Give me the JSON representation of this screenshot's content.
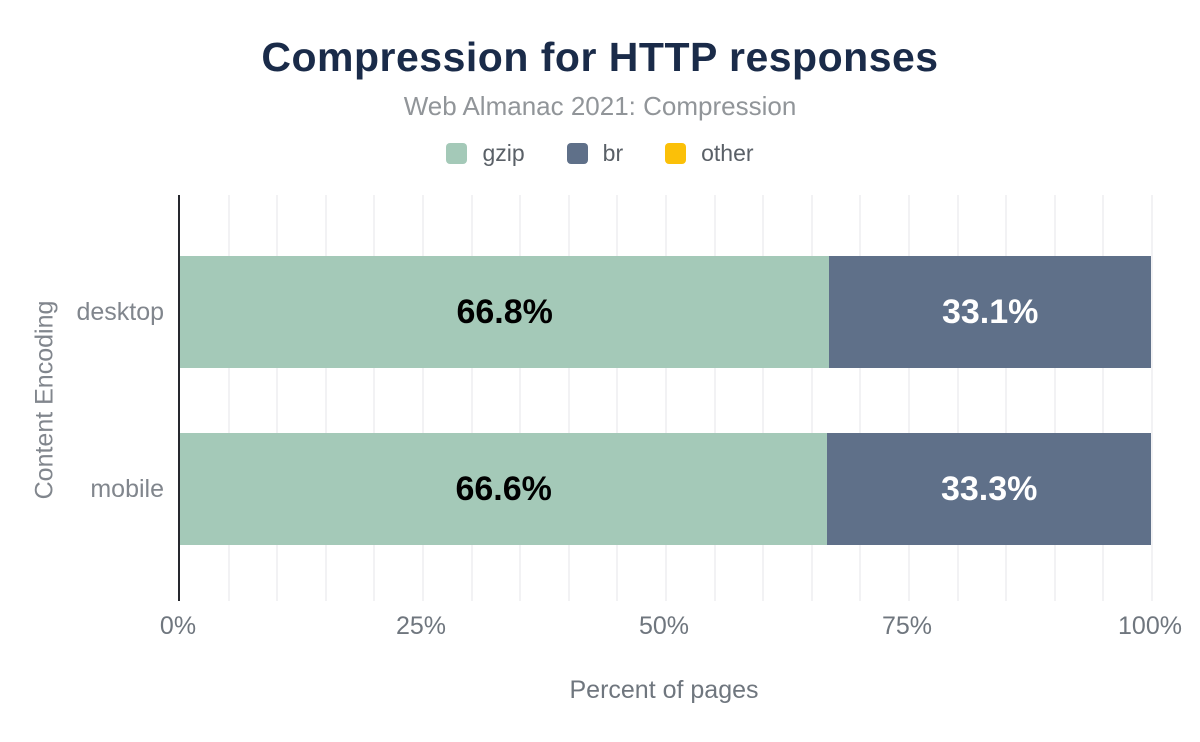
{
  "chart_data": {
    "type": "bar",
    "orientation": "horizontal",
    "stacked": true,
    "title": "Compression for HTTP responses",
    "subtitle": "Web Almanac 2021: Compression",
    "categories": [
      "desktop",
      "mobile"
    ],
    "series": [
      {
        "name": "gzip",
        "color": "#a4c9b8",
        "label_color": "#000000",
        "values": [
          66.8,
          66.6
        ],
        "labels": [
          "66.8%",
          "66.6%"
        ]
      },
      {
        "name": "br",
        "color": "#5f7089",
        "label_color": "#ffffff",
        "values": [
          33.1,
          33.3
        ],
        "labels": [
          "33.1%",
          "33.3%"
        ]
      },
      {
        "name": "other",
        "color": "#fbc008",
        "label_color": "#000000",
        "values": [
          0,
          0
        ],
        "labels": [
          "",
          ""
        ]
      }
    ],
    "xlabel": "Percent of pages",
    "ylabel": "Content Encoding",
    "xlim": [
      0,
      100
    ],
    "xticks": [
      {
        "label": "0%",
        "value": 0
      },
      {
        "label": "25%",
        "value": 25
      },
      {
        "label": "50%",
        "value": 50
      },
      {
        "label": "75%",
        "value": 75
      },
      {
        "label": "100%",
        "value": 100
      }
    ],
    "grid": {
      "minor_vertical_step_percent": 5
    },
    "legend_position": "top"
  },
  "colors": {
    "title": "#1a2b49",
    "subtitle": "#919599",
    "legend_label": "#5a6067",
    "tick_label": "#6f767e",
    "category_label": "#81868d",
    "axis_line": "#26282e",
    "gridline": "#f2f2f4",
    "background": "#ffffff"
  }
}
